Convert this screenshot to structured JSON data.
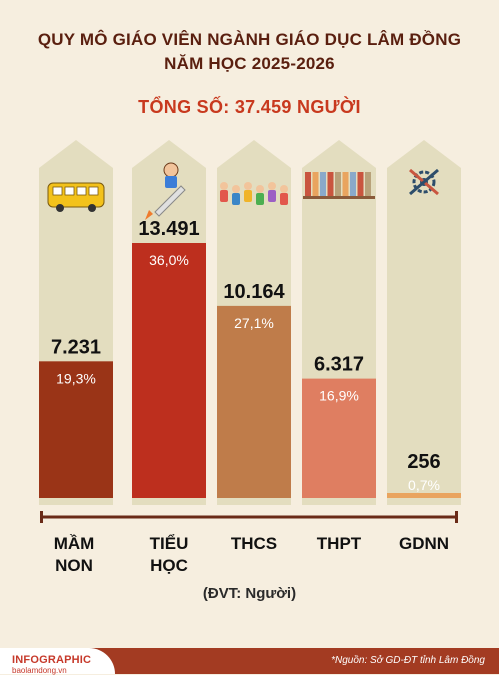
{
  "header": {
    "title_line1": "QUY MÔ GIÁO VIÊN NGÀNH GIÁO DỤC LÂM ĐỒNG",
    "title_line2": "NĂM HỌC 2025-2026",
    "total": "TỔNG SỐ: 37.459 NGƯỜI"
  },
  "chart_data": {
    "type": "bar",
    "categories": [
      [
        "MẦM",
        "NON"
      ],
      [
        "TIỂU",
        "HỌC"
      ],
      [
        "THCS"
      ],
      [
        "THPT"
      ],
      [
        "GDNN"
      ]
    ],
    "values": [
      7231,
      13491,
      10164,
      6317,
      256
    ],
    "value_labels": [
      "7.231",
      "13.491",
      "10.164",
      "6.317",
      "256"
    ],
    "percent_labels": [
      "19,3%",
      "36,0%",
      "27,1%",
      "16,9%",
      "0,7%"
    ],
    "bar_colors": [
      "#9a3417",
      "#bd2f1e",
      "#bf7c4a",
      "#df7e61",
      "#e9a45f"
    ],
    "bg_column_color": "#e3ddbf",
    "ylim": [
      0,
      13491
    ],
    "icons": [
      "school-bus-icon",
      "rocket-kid-icon",
      "children-group-icon",
      "bookshelf-icon",
      "gear-tools-icon"
    ]
  },
  "unit_label": "(ĐVT: Người)",
  "footer": {
    "brand": "INFOGRAPHIC",
    "site": "baolamdong.vn",
    "source": "*Nguồn: Sở GD-ĐT tỉnh Lâm Đồng"
  }
}
